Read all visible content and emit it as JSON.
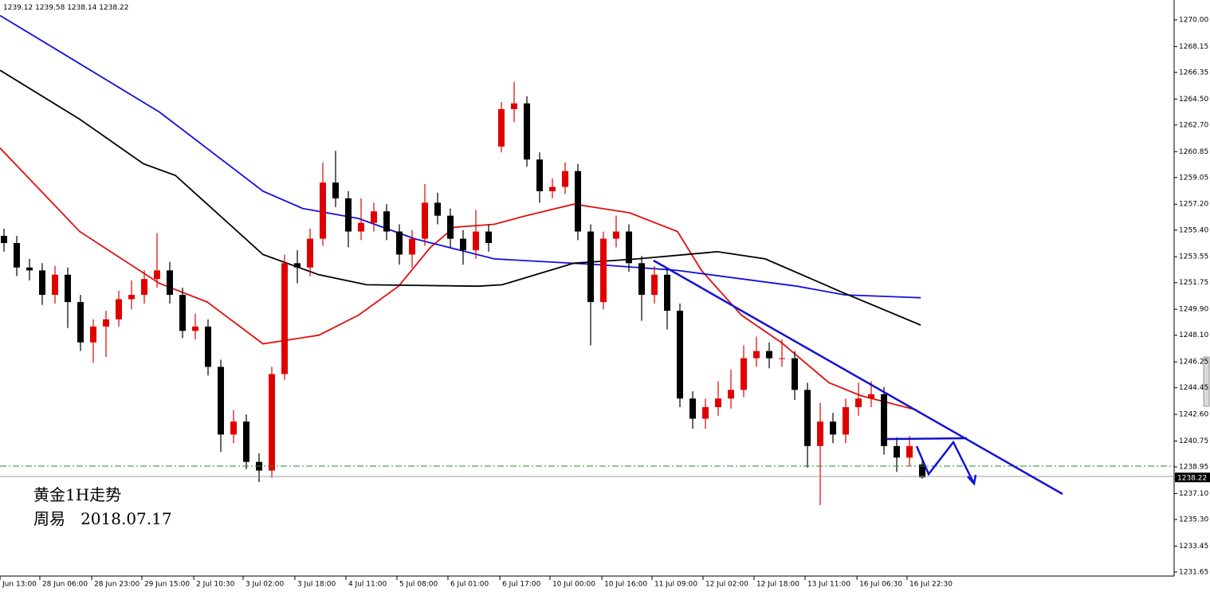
{
  "chart_data": {
    "type": "candlestick",
    "header": {
      "parts": [
        "open",
        "high",
        "low",
        "close"
      ]
    },
    "annotations": [
      "黄金1H走势",
      "周易   2018.07.17"
    ],
    "bull_color": "#e00000",
    "bear_color": "#000000",
    "open": [
      1255.0,
      1254.5,
      1252.8,
      1252.6,
      1250.9,
      1252.3,
      1250.4,
      1247.6,
      1248.7,
      1249.2,
      1250.6,
      1250.9,
      1252.0,
      1252.6,
      1250.9,
      1248.4,
      1248.7,
      1245.9,
      1241.2,
      1242.1,
      1239.3,
      1238.7,
      1245.4,
      1253.1,
      1252.8,
      1254.8,
      1258.7,
      1257.6,
      1255.3,
      1255.9,
      1256.7,
      1255.3,
      1253.7,
      1254.8,
      1257.3,
      1256.4,
      1254.8,
      1254.0,
      1255.3,
      1261.2,
      1263.8,
      1264.2,
      1260.3,
      1258.1,
      1258.4,
      1259.5,
      1255.3,
      1250.4,
      1254.8,
      1255.3,
      1253.1,
      1250.9,
      1252.3,
      1249.8,
      1243.7,
      1242.3,
      1243.1,
      1243.7,
      1244.3,
      1246.5,
      1247.0,
      1246.5,
      1246.5,
      1244.3,
      1240.4,
      1242.1,
      1241.2,
      1243.1,
      1243.7,
      1244.0,
      1240.4,
      1239.6,
      1239.12
    ],
    "high": [
      1255.5,
      1255.0,
      1253.4,
      1253.1,
      1252.9,
      1252.8,
      1250.9,
      1249.2,
      1249.8,
      1251.2,
      1251.9,
      1252.6,
      1255.2,
      1253.2,
      1251.4,
      1249.6,
      1249.2,
      1246.4,
      1242.9,
      1242.6,
      1239.9,
      1245.9,
      1253.7,
      1254.0,
      1255.5,
      1260.1,
      1260.9,
      1258.1,
      1257.6,
      1257.3,
      1257.2,
      1255.8,
      1255.4,
      1258.6,
      1258.0,
      1256.9,
      1255.4,
      1256.8,
      1255.8,
      1264.3,
      1265.7,
      1264.7,
      1260.8,
      1259.0,
      1260.1,
      1260.0,
      1255.8,
      1255.3,
      1256.4,
      1255.8,
      1253.6,
      1252.9,
      1252.8,
      1250.3,
      1244.2,
      1243.7,
      1244.9,
      1245.7,
      1247.4,
      1248.0,
      1247.6,
      1247.8,
      1247.0,
      1244.8,
      1243.4,
      1242.7,
      1243.7,
      1244.8,
      1244.9,
      1244.5,
      1241.0,
      1241.1,
      1239.58
    ],
    "low": [
      1253.9,
      1252.2,
      1251.9,
      1250.2,
      1250.3,
      1248.6,
      1247.0,
      1246.2,
      1246.6,
      1248.7,
      1249.9,
      1250.3,
      1251.4,
      1250.3,
      1247.9,
      1247.8,
      1245.3,
      1240.0,
      1240.6,
      1238.8,
      1237.9,
      1238.2,
      1245.0,
      1251.7,
      1252.2,
      1254.3,
      1257.0,
      1254.2,
      1254.7,
      1255.3,
      1254.7,
      1253.0,
      1252.8,
      1254.3,
      1255.8,
      1254.2,
      1253.0,
      1253.4,
      1253.9,
      1260.8,
      1262.9,
      1259.8,
      1257.3,
      1257.6,
      1257.9,
      1254.7,
      1247.4,
      1249.9,
      1254.2,
      1252.5,
      1249.1,
      1250.3,
      1248.5,
      1243.1,
      1241.6,
      1241.6,
      1242.5,
      1243.0,
      1243.8,
      1245.9,
      1245.8,
      1245.9,
      1243.6,
      1238.9,
      1236.3,
      1240.6,
      1240.6,
      1242.5,
      1243.1,
      1239.8,
      1238.6,
      1239.0,
      1238.14
    ],
    "close": [
      1254.5,
      1252.8,
      1252.6,
      1250.9,
      1252.3,
      1250.4,
      1247.6,
      1248.7,
      1249.2,
      1250.6,
      1250.9,
      1252.0,
      1252.6,
      1250.9,
      1248.4,
      1248.7,
      1245.9,
      1241.2,
      1242.1,
      1239.3,
      1238.7,
      1245.4,
      1253.1,
      1252.8,
      1254.8,
      1258.7,
      1257.6,
      1255.3,
      1255.9,
      1256.7,
      1255.3,
      1253.7,
      1254.8,
      1257.3,
      1256.4,
      1254.8,
      1254.0,
      1255.3,
      1254.5,
      1263.8,
      1264.2,
      1260.3,
      1258.1,
      1258.4,
      1259.5,
      1255.3,
      1250.4,
      1254.8,
      1255.3,
      1253.1,
      1250.9,
      1252.3,
      1249.8,
      1243.7,
      1242.3,
      1243.1,
      1243.7,
      1244.3,
      1246.5,
      1247.0,
      1246.5,
      1246.5,
      1244.3,
      1240.4,
      1242.1,
      1241.2,
      1243.1,
      1243.7,
      1244.0,
      1240.4,
      1239.6,
      1240.4,
      1238.22
    ],
    "lines": [
      {
        "color": "#e01010",
        "x": [
          -0.31,
          5.94,
          12.19,
          15.94,
          20.31,
          24.69,
          27.81,
          30.94,
          33.44,
          35.31,
          38.44,
          40.94,
          44.69,
          49.06,
          52.81,
          54.69,
          57.81,
          60.94,
          64.69,
          67.19,
          71.56
        ],
        "values": [
          1261.1,
          1255.3,
          1251.7,
          1250.4,
          1247.5,
          1248.1,
          1249.5,
          1251.5,
          1254.2,
          1255.6,
          1255.8,
          1256.4,
          1257.2,
          1256.6,
          1255.3,
          1252.6,
          1249.5,
          1247.6,
          1244.8,
          1243.9,
          1242.9
        ]
      },
      {
        "color": "#1010e0",
        "x": [
          -0.31,
          3.44,
          12.19,
          20.31,
          23.44,
          27.81,
          32.19,
          38.44,
          46.56,
          52.81,
          62.19,
          65.94,
          71.88
        ],
        "values": [
          1270.3,
          1268.3,
          1263.6,
          1258.1,
          1256.9,
          1256.2,
          1254.8,
          1253.4,
          1253.0,
          1252.6,
          1251.5,
          1250.9,
          1250.7
        ]
      },
      {
        "color": "#000000",
        "x": [
          -0.31,
          5.94,
          10.94,
          13.44,
          20.31,
          24.69,
          28.44,
          37.19,
          39.06,
          44.69,
          49.69,
          55.94,
          59.69,
          65.94,
          71.88
        ],
        "values": [
          1266.5,
          1263.1,
          1260.0,
          1259.2,
          1253.7,
          1252.3,
          1251.6,
          1251.5,
          1251.6,
          1253.1,
          1253.4,
          1253.9,
          1253.4,
          1251.0,
          1248.8
        ]
      }
    ],
    "xlim": [
      -0.3125,
      91.75
    ],
    "xticks": [
      {
        "value": -0.31,
        "label": "Jun 13:00"
      },
      {
        "value": 2.81,
        "label": "28 Jun 06:00"
      },
      {
        "value": 6.88,
        "label": "28 Jun 23:00"
      },
      {
        "value": 10.81,
        "label": "29 Jun 15:00"
      },
      {
        "value": 14.88,
        "label": "2 Jul 10:30"
      },
      {
        "value": 18.75,
        "label": "3 Jul 02:00"
      },
      {
        "value": 22.81,
        "label": "3 Jul 18:00"
      },
      {
        "value": 26.81,
        "label": "4 Jul 11:00"
      },
      {
        "value": 30.81,
        "label": "5 Jul 08:00"
      },
      {
        "value": 34.81,
        "label": "6 Jul 01:00"
      },
      {
        "value": 38.88,
        "label": "6 Jul 17:00"
      },
      {
        "value": 42.81,
        "label": "10 Jul 00:00"
      },
      {
        "value": 46.88,
        "label": "10 Jul 16:00"
      },
      {
        "value": 50.81,
        "label": "11 Jul 09:00"
      },
      {
        "value": 54.81,
        "label": "12 Jul 02:00"
      },
      {
        "value": 58.81,
        "label": "12 Jul 18:00"
      },
      {
        "value": 62.81,
        "label": "13 Jul 11:00"
      },
      {
        "value": 66.88,
        "label": "16 Jul 06:30"
      },
      {
        "value": 70.81,
        "label": "16 Jul 22:30"
      }
    ],
    "ylim": [
      1231.37,
      1271.38
    ],
    "yticks": [
      {
        "value": 1270.0,
        "label": "1270.00"
      },
      {
        "value": 1268.15,
        "label": "1268.15"
      },
      {
        "value": 1266.35,
        "label": "1266.35"
      },
      {
        "value": 1264.5,
        "label": "1264.50"
      },
      {
        "value": 1262.7,
        "label": "1262.70"
      },
      {
        "value": 1260.85,
        "label": "1260.85"
      },
      {
        "value": 1259.05,
        "label": "1259.05"
      },
      {
        "value": 1257.2,
        "label": "1257.20"
      },
      {
        "value": 1255.4,
        "label": "1255.40"
      },
      {
        "value": 1253.55,
        "label": "1253.55"
      },
      {
        "value": 1251.75,
        "label": "1251.75"
      },
      {
        "value": 1249.9,
        "label": "1249.90"
      },
      {
        "value": 1248.1,
        "label": "1248.10"
      },
      {
        "value": 1246.25,
        "label": "1246.25"
      },
      {
        "value": 1244.45,
        "label": "1244.45"
      },
      {
        "value": 1242.6,
        "label": "1242.60"
      },
      {
        "value": 1240.75,
        "label": "1240.75"
      },
      {
        "value": 1238.95,
        "label": "1238.95"
      },
      {
        "value": 1237.1,
        "label": "1237.10"
      },
      {
        "value": 1235.3,
        "label": "1235.30"
      },
      {
        "value": 1233.45,
        "label": "1233.45"
      },
      {
        "value": 1231.65,
        "label": "1231.65"
      }
    ]
  }
}
